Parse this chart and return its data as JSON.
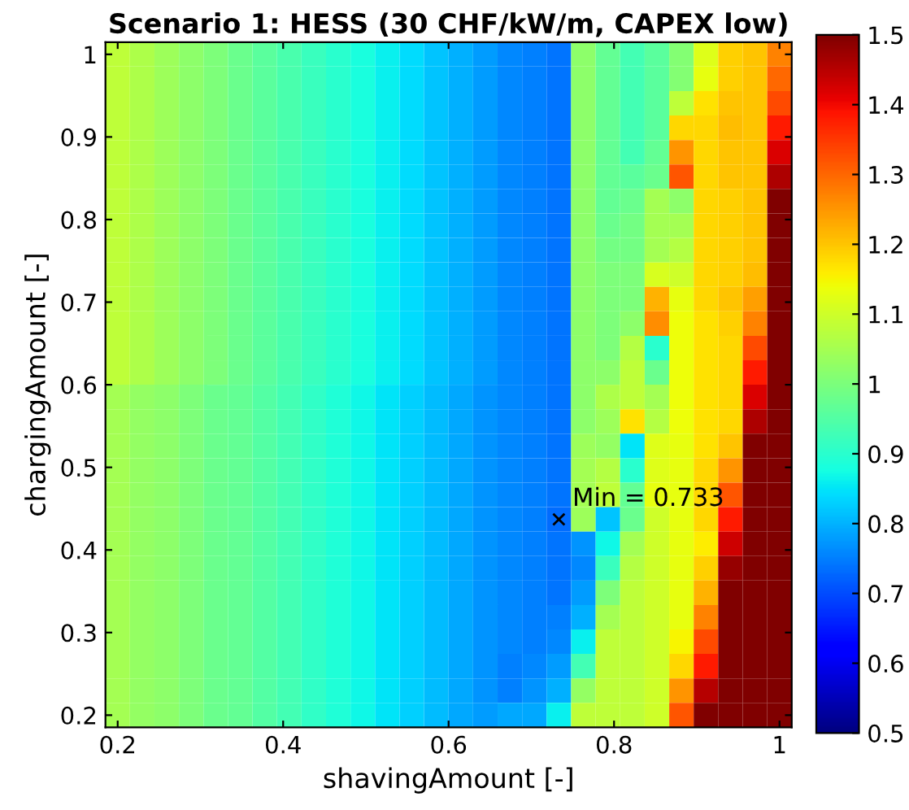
{
  "chart_data": {
    "type": "heatmap",
    "title": "Scenario 1: HESS (30 CHF/kW/m, CAPEX low)",
    "xlabel": "shavingAmount [-]",
    "ylabel": "chargingAmount [-]",
    "x": [
      0.2,
      0.2296,
      0.2593,
      0.2889,
      0.3185,
      0.3481,
      0.3778,
      0.4074,
      0.437,
      0.4667,
      0.4963,
      0.5259,
      0.5556,
      0.5852,
      0.6148,
      0.6444,
      0.6741,
      0.7037,
      0.7333,
      0.763,
      0.7926,
      0.8222,
      0.8519,
      0.8815,
      0.9111,
      0.9407,
      0.9704,
      1.0
    ],
    "y": [
      1.0,
      0.9704,
      0.9407,
      0.9111,
      0.8815,
      0.8519,
      0.8222,
      0.7926,
      0.763,
      0.7333,
      0.7037,
      0.6741,
      0.6444,
      0.6148,
      0.5852,
      0.5556,
      0.5259,
      0.4963,
      0.4667,
      0.437,
      0.4074,
      0.3778,
      0.3481,
      0.3185,
      0.2889,
      0.2593,
      0.2296,
      0.2
    ],
    "cells": [
      [
        1.08,
        1.06,
        1.04,
        1.02,
        1.0,
        0.98,
        0.96,
        0.94,
        0.92,
        0.9,
        0.88,
        0.86,
        0.84,
        0.82,
        0.8,
        0.78,
        0.76,
        0.75,
        0.74,
        1.02,
        0.97,
        0.93,
        0.96,
        1.01,
        1.12,
        1.19,
        1.2,
        1.27
      ],
      [
        1.08,
        1.06,
        1.04,
        1.02,
        1.0,
        0.98,
        0.96,
        0.94,
        0.92,
        0.9,
        0.88,
        0.86,
        0.84,
        0.82,
        0.8,
        0.78,
        0.76,
        0.75,
        0.74,
        1.02,
        0.97,
        0.93,
        0.96,
        1.01,
        1.13,
        1.19,
        1.2,
        1.3
      ],
      [
        1.08,
        1.06,
        1.04,
        1.02,
        1.0,
        0.98,
        0.96,
        0.94,
        0.92,
        0.9,
        0.88,
        0.86,
        0.84,
        0.82,
        0.8,
        0.78,
        0.76,
        0.75,
        0.74,
        1.02,
        0.97,
        0.93,
        0.96,
        1.08,
        1.17,
        1.2,
        1.2,
        1.33
      ],
      [
        1.08,
        1.06,
        1.04,
        1.02,
        1.0,
        0.98,
        0.96,
        0.94,
        0.92,
        0.9,
        0.88,
        0.86,
        0.84,
        0.82,
        0.8,
        0.78,
        0.76,
        0.75,
        0.74,
        1.02,
        0.97,
        0.93,
        0.96,
        1.18,
        1.18,
        1.21,
        1.2,
        1.38
      ],
      [
        1.08,
        1.06,
        1.04,
        1.02,
        1.0,
        0.98,
        0.96,
        0.94,
        0.92,
        0.9,
        0.88,
        0.86,
        0.84,
        0.82,
        0.8,
        0.78,
        0.76,
        0.75,
        0.74,
        1.02,
        0.97,
        0.93,
        0.97,
        1.25,
        1.18,
        1.2,
        1.2,
        1.42
      ],
      [
        1.08,
        1.06,
        1.04,
        1.02,
        1.0,
        0.98,
        0.96,
        0.94,
        0.92,
        0.9,
        0.88,
        0.86,
        0.84,
        0.82,
        0.8,
        0.78,
        0.76,
        0.75,
        0.74,
        1.02,
        0.97,
        0.96,
        0.98,
        1.32,
        1.18,
        1.2,
        1.2,
        1.46
      ],
      [
        1.08,
        1.06,
        1.04,
        1.02,
        1.0,
        0.98,
        0.96,
        0.94,
        0.92,
        0.9,
        0.88,
        0.86,
        0.84,
        0.82,
        0.8,
        0.78,
        0.76,
        0.75,
        0.74,
        1.02,
        0.97,
        0.98,
        1.05,
        1.02,
        1.18,
        1.19,
        1.2,
        1.5
      ],
      [
        1.08,
        1.06,
        1.04,
        1.02,
        1.0,
        0.98,
        0.96,
        0.94,
        0.92,
        0.9,
        0.88,
        0.86,
        0.84,
        0.82,
        0.8,
        0.78,
        0.76,
        0.75,
        0.74,
        1.02,
        0.98,
        0.99,
        1.05,
        1.05,
        1.18,
        1.19,
        1.2,
        1.5
      ],
      [
        1.08,
        1.06,
        1.04,
        1.02,
        1.0,
        0.98,
        0.96,
        0.94,
        0.92,
        0.9,
        0.88,
        0.86,
        0.84,
        0.82,
        0.8,
        0.78,
        0.76,
        0.75,
        0.74,
        1.02,
        0.99,
        0.99,
        1.05,
        1.07,
        1.18,
        1.19,
        1.2,
        1.5
      ],
      [
        1.08,
        1.06,
        1.04,
        1.02,
        1.0,
        0.98,
        0.96,
        0.94,
        0.92,
        0.9,
        0.88,
        0.86,
        0.84,
        0.82,
        0.8,
        0.78,
        0.76,
        0.75,
        0.74,
        1.02,
        1.0,
        1.0,
        1.11,
        1.1,
        1.18,
        1.19,
        1.21,
        1.5
      ],
      [
        1.08,
        1.06,
        1.04,
        1.02,
        1.0,
        0.98,
        0.96,
        0.94,
        0.92,
        0.9,
        0.88,
        0.86,
        0.84,
        0.82,
        0.8,
        0.78,
        0.76,
        0.75,
        0.74,
        1.02,
        1.0,
        1.0,
        1.22,
        1.13,
        1.18,
        1.2,
        1.24,
        1.5
      ],
      [
        1.08,
        1.06,
        1.04,
        1.02,
        1.0,
        0.98,
        0.96,
        0.94,
        0.92,
        0.9,
        0.88,
        0.86,
        0.84,
        0.82,
        0.8,
        0.78,
        0.76,
        0.75,
        0.74,
        1.02,
        1.0,
        1.02,
        1.26,
        1.14,
        1.17,
        1.19,
        1.27,
        1.5
      ],
      [
        1.08,
        1.06,
        1.04,
        1.02,
        1.0,
        0.98,
        0.96,
        0.94,
        0.92,
        0.9,
        0.88,
        0.86,
        0.84,
        0.82,
        0.8,
        0.78,
        0.76,
        0.75,
        0.74,
        1.02,
        1.0,
        1.07,
        0.9,
        1.14,
        1.17,
        1.18,
        1.33,
        1.5
      ],
      [
        1.08,
        1.06,
        1.04,
        1.02,
        1.0,
        0.98,
        0.96,
        0.94,
        0.92,
        0.9,
        0.88,
        0.86,
        0.84,
        0.82,
        0.8,
        0.78,
        0.76,
        0.75,
        0.74,
        1.02,
        1.02,
        1.08,
        0.98,
        1.14,
        1.17,
        1.18,
        1.38,
        1.5
      ],
      [
        1.05,
        1.03,
        1.02,
        1.0,
        0.98,
        0.97,
        0.95,
        0.93,
        0.91,
        0.89,
        0.87,
        0.85,
        0.83,
        0.81,
        0.79,
        0.77,
        0.76,
        0.75,
        0.74,
        1.02,
        1.06,
        1.08,
        1.05,
        1.14,
        1.17,
        1.18,
        1.42,
        1.5
      ],
      [
        1.05,
        1.03,
        1.02,
        1.0,
        0.98,
        0.97,
        0.95,
        0.93,
        0.91,
        0.89,
        0.87,
        0.85,
        0.83,
        0.81,
        0.79,
        0.77,
        0.76,
        0.75,
        0.74,
        1.02,
        1.04,
        1.17,
        1.07,
        1.14,
        1.17,
        1.18,
        1.46,
        1.5
      ],
      [
        1.05,
        1.03,
        1.02,
        1.0,
        0.98,
        0.97,
        0.95,
        0.93,
        0.91,
        0.89,
        0.87,
        0.85,
        0.83,
        0.81,
        0.79,
        0.77,
        0.76,
        0.75,
        0.74,
        1.04,
        1.03,
        0.85,
        1.12,
        1.13,
        1.17,
        1.2,
        1.5,
        1.5
      ],
      [
        1.05,
        1.03,
        1.02,
        1.0,
        0.98,
        0.97,
        0.95,
        0.93,
        0.91,
        0.89,
        0.87,
        0.85,
        0.83,
        0.81,
        0.79,
        0.77,
        0.76,
        0.75,
        0.74,
        1.05,
        1.07,
        0.9,
        1.12,
        1.13,
        1.18,
        1.25,
        1.5,
        1.5
      ],
      [
        1.05,
        1.03,
        1.02,
        1.0,
        0.98,
        0.97,
        0.95,
        0.93,
        0.91,
        0.89,
        0.87,
        0.85,
        0.83,
        0.81,
        0.79,
        0.77,
        0.76,
        0.75,
        0.74,
        1.05,
        1.08,
        0.97,
        1.13,
        1.13,
        1.18,
        1.32,
        1.5,
        1.5
      ],
      [
        1.05,
        1.03,
        1.02,
        1.0,
        0.98,
        0.97,
        0.95,
        0.93,
        0.91,
        0.89,
        0.87,
        0.85,
        0.83,
        0.81,
        0.79,
        0.77,
        0.76,
        0.75,
        0.733,
        1.04,
        0.82,
        0.98,
        1.1,
        1.13,
        1.18,
        1.38,
        1.5,
        1.5
      ],
      [
        1.05,
        1.03,
        1.02,
        1.0,
        0.98,
        0.97,
        0.95,
        0.93,
        0.91,
        0.89,
        0.87,
        0.85,
        0.83,
        0.81,
        0.79,
        0.77,
        0.76,
        0.75,
        0.74,
        0.77,
        0.87,
        1.05,
        1.1,
        1.13,
        1.16,
        1.43,
        1.5,
        1.5
      ],
      [
        1.05,
        1.03,
        1.02,
        1.0,
        0.98,
        0.97,
        0.95,
        0.93,
        0.91,
        0.89,
        0.87,
        0.85,
        0.83,
        0.81,
        0.79,
        0.77,
        0.76,
        0.75,
        0.74,
        0.76,
        0.92,
        1.07,
        1.1,
        1.13,
        1.19,
        1.48,
        1.5,
        1.5
      ],
      [
        1.05,
        1.03,
        1.02,
        1.0,
        0.98,
        0.97,
        0.95,
        0.93,
        0.91,
        0.89,
        0.87,
        0.85,
        0.83,
        0.81,
        0.79,
        0.77,
        0.76,
        0.75,
        0.74,
        0.78,
        1.0,
        1.08,
        1.1,
        1.13,
        1.22,
        1.5,
        1.5,
        1.5
      ],
      [
        1.05,
        1.03,
        1.02,
        1.0,
        0.98,
        0.97,
        0.95,
        0.93,
        0.91,
        0.89,
        0.87,
        0.85,
        0.83,
        0.81,
        0.79,
        0.77,
        0.76,
        0.75,
        0.75,
        0.8,
        1.05,
        1.08,
        1.1,
        1.13,
        1.27,
        1.5,
        1.5,
        1.5
      ],
      [
        1.05,
        1.03,
        1.02,
        1.0,
        0.98,
        0.97,
        0.95,
        0.93,
        0.91,
        0.89,
        0.87,
        0.85,
        0.83,
        0.81,
        0.79,
        0.77,
        0.76,
        0.75,
        0.76,
        0.86,
        1.08,
        1.08,
        1.1,
        1.15,
        1.33,
        1.5,
        1.5,
        1.5
      ],
      [
        1.05,
        1.03,
        1.02,
        1.0,
        0.98,
        0.97,
        0.95,
        0.93,
        0.91,
        0.89,
        0.87,
        0.85,
        0.83,
        0.81,
        0.79,
        0.77,
        0.75,
        0.76,
        0.78,
        0.93,
        1.08,
        1.08,
        1.1,
        1.18,
        1.38,
        1.5,
        1.5,
        1.5
      ],
      [
        1.05,
        1.03,
        1.02,
        1.0,
        0.98,
        0.97,
        0.95,
        0.93,
        0.91,
        0.89,
        0.87,
        0.85,
        0.83,
        0.81,
        0.79,
        0.77,
        0.75,
        0.77,
        0.8,
        1.03,
        1.08,
        1.08,
        1.1,
        1.25,
        1.45,
        1.5,
        1.5,
        1.5
      ],
      [
        1.05,
        1.03,
        1.02,
        1.0,
        0.98,
        0.97,
        0.95,
        0.93,
        0.91,
        0.89,
        0.87,
        0.85,
        0.83,
        0.81,
        0.79,
        0.78,
        0.79,
        0.79,
        0.86,
        1.08,
        1.08,
        1.08,
        1.1,
        1.32,
        1.5,
        1.5,
        1.5,
        1.5
      ]
    ],
    "xlim": [
      0.1852,
      1.0148
    ],
    "ylim": [
      0.1852,
      1.0148
    ],
    "xticks": [
      0.2,
      0.4,
      0.6,
      0.8,
      1
    ],
    "yticks": [
      0.2,
      0.3,
      0.4,
      0.5,
      0.6,
      0.7,
      0.8,
      0.9,
      1
    ],
    "clim": [
      0.5,
      1.5
    ],
    "cticks": [
      0.5,
      0.6,
      0.7,
      0.8,
      0.9,
      1,
      1.1,
      1.2,
      1.3,
      1.4,
      1.5
    ],
    "annotations": [
      "Min = 0.733"
    ],
    "grid": false
  }
}
